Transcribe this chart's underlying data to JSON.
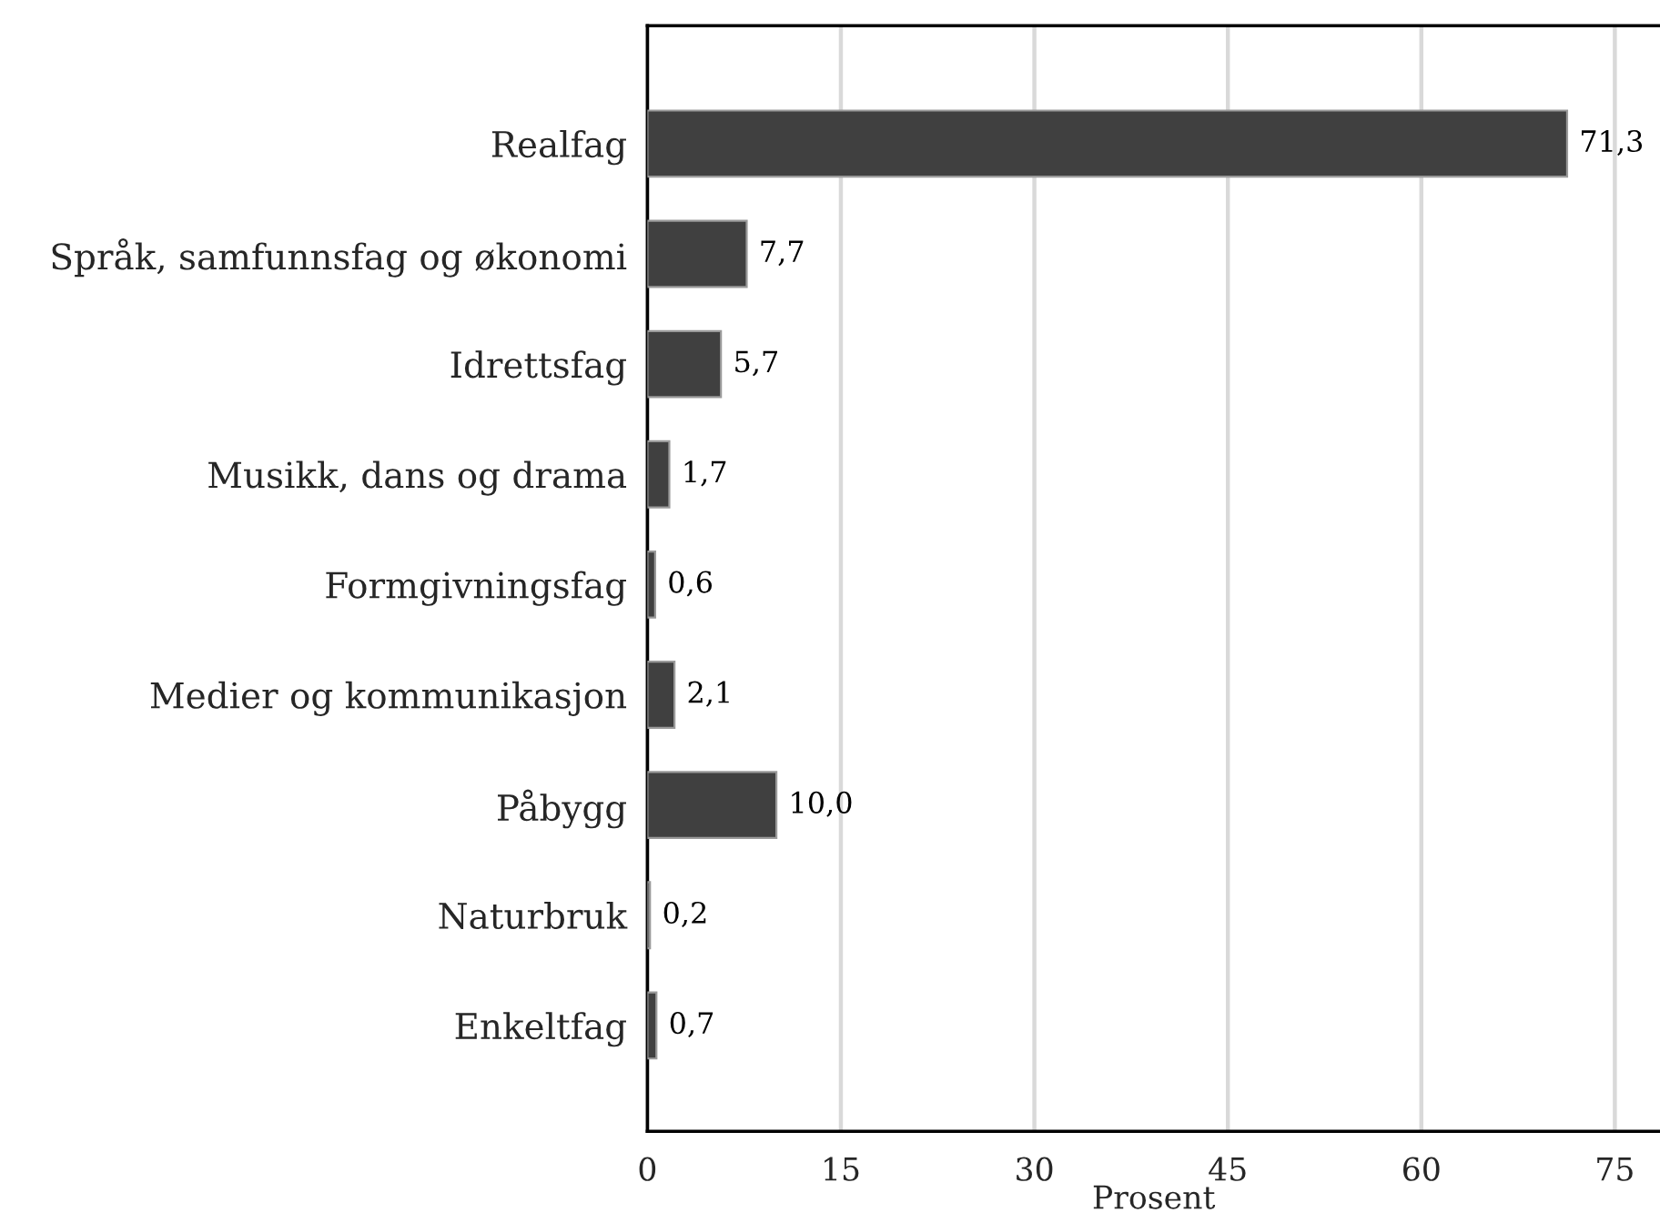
{
  "chart_data": {
    "type": "bar",
    "orientation": "horizontal",
    "xlabel": "Prosent",
    "categories": [
      "Realfag",
      "Språk, samfunnsfag og økonomi",
      "Idrettsfag",
      "Musikk, dans og drama",
      "Formgivningsfag",
      "Medier og kommunikasjon",
      "Påbygg",
      "Naturbruk",
      "Enkeltfag"
    ],
    "values": [
      71.3,
      7.7,
      5.7,
      1.7,
      0.6,
      2.1,
      10.0,
      0.2,
      0.7
    ],
    "value_labels": [
      "71,3",
      "7,7",
      "5,7",
      "1,7",
      "0,6",
      "2,1",
      "10,0",
      "0,2",
      "0,7"
    ],
    "color": "#404040",
    "xlim": [
      0,
      78.5
    ],
    "xticks": [
      0,
      15,
      30,
      45,
      60,
      75
    ],
    "grid": "x"
  }
}
